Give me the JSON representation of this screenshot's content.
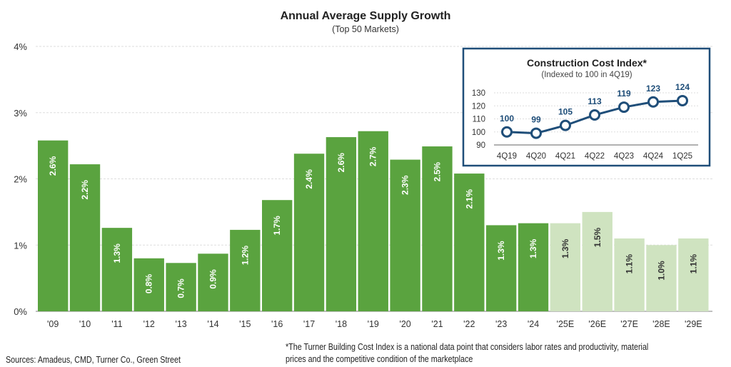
{
  "chart_data": [
    {
      "type": "bar",
      "title": "Annual Average Supply Growth",
      "subtitle": "(Top 50 Markets)",
      "xlabel": "",
      "ylabel": "",
      "ylim": [
        0,
        4
      ],
      "yticks": [
        "0%",
        "1%",
        "2%",
        "3%",
        "4%"
      ],
      "grid": true,
      "categories": [
        "'09",
        "'10",
        "'11",
        "'12",
        "'13",
        "'14",
        "'15",
        "'16",
        "'17",
        "'18",
        "'19",
        "'20",
        "'21",
        "'22",
        "'23",
        "'24",
        "'25E",
        "'26E",
        "'27E",
        "'28E",
        "'29E"
      ],
      "values": [
        2.58,
        2.22,
        1.26,
        0.8,
        0.73,
        0.87,
        1.23,
        1.68,
        2.38,
        2.63,
        2.72,
        2.29,
        2.49,
        2.08,
        1.3,
        1.33,
        1.33,
        1.5,
        1.1,
        1.0,
        1.1
      ],
      "data_labels": [
        "2.6%",
        "2.2%",
        "1.3%",
        "0.8%",
        "0.7%",
        "0.9%",
        "1.2%",
        "1.7%",
        "2.4%",
        "2.6%",
        "2.7%",
        "2.3%",
        "2.5%",
        "2.1%",
        "1.3%",
        "1.3%",
        "1.3%",
        "1.5%",
        "1.1%",
        "1.0%",
        "1.1%"
      ],
      "estimate": [
        false,
        false,
        false,
        false,
        false,
        false,
        false,
        false,
        false,
        false,
        false,
        false,
        false,
        false,
        false,
        false,
        true,
        true,
        true,
        true,
        true
      ],
      "colors": {
        "actual": "#5aa33f",
        "estimate": "#cfe3c0",
        "actual_label": "#ffffff",
        "estimate_label": "#333333"
      }
    },
    {
      "type": "line",
      "title": "Construction Cost Index*",
      "subtitle": "(Indexed to 100 in 4Q19)",
      "ylim": [
        90,
        130
      ],
      "yticks": [
        "90",
        "100",
        "110",
        "120",
        "130"
      ],
      "grid": true,
      "categories": [
        "4Q19",
        "4Q20",
        "4Q21",
        "4Q22",
        "4Q23",
        "4Q24",
        "1Q25"
      ],
      "values": [
        100,
        99,
        105,
        113,
        119,
        123,
        124
      ],
      "data_labels": [
        "100",
        "99",
        "105",
        "113",
        "119",
        "123",
        "124"
      ],
      "colors": {
        "line": "#1f4e79",
        "border": "#1f4e79"
      }
    }
  ],
  "footer": {
    "sources": "Sources: Amadeus, CMD, Turner Co., Green Street",
    "note_line1": "*The Turner Building Cost Index is a national data point that considers labor rates and productivity, material",
    "note_line2": "prices and the competitive condition of the marketplace"
  }
}
